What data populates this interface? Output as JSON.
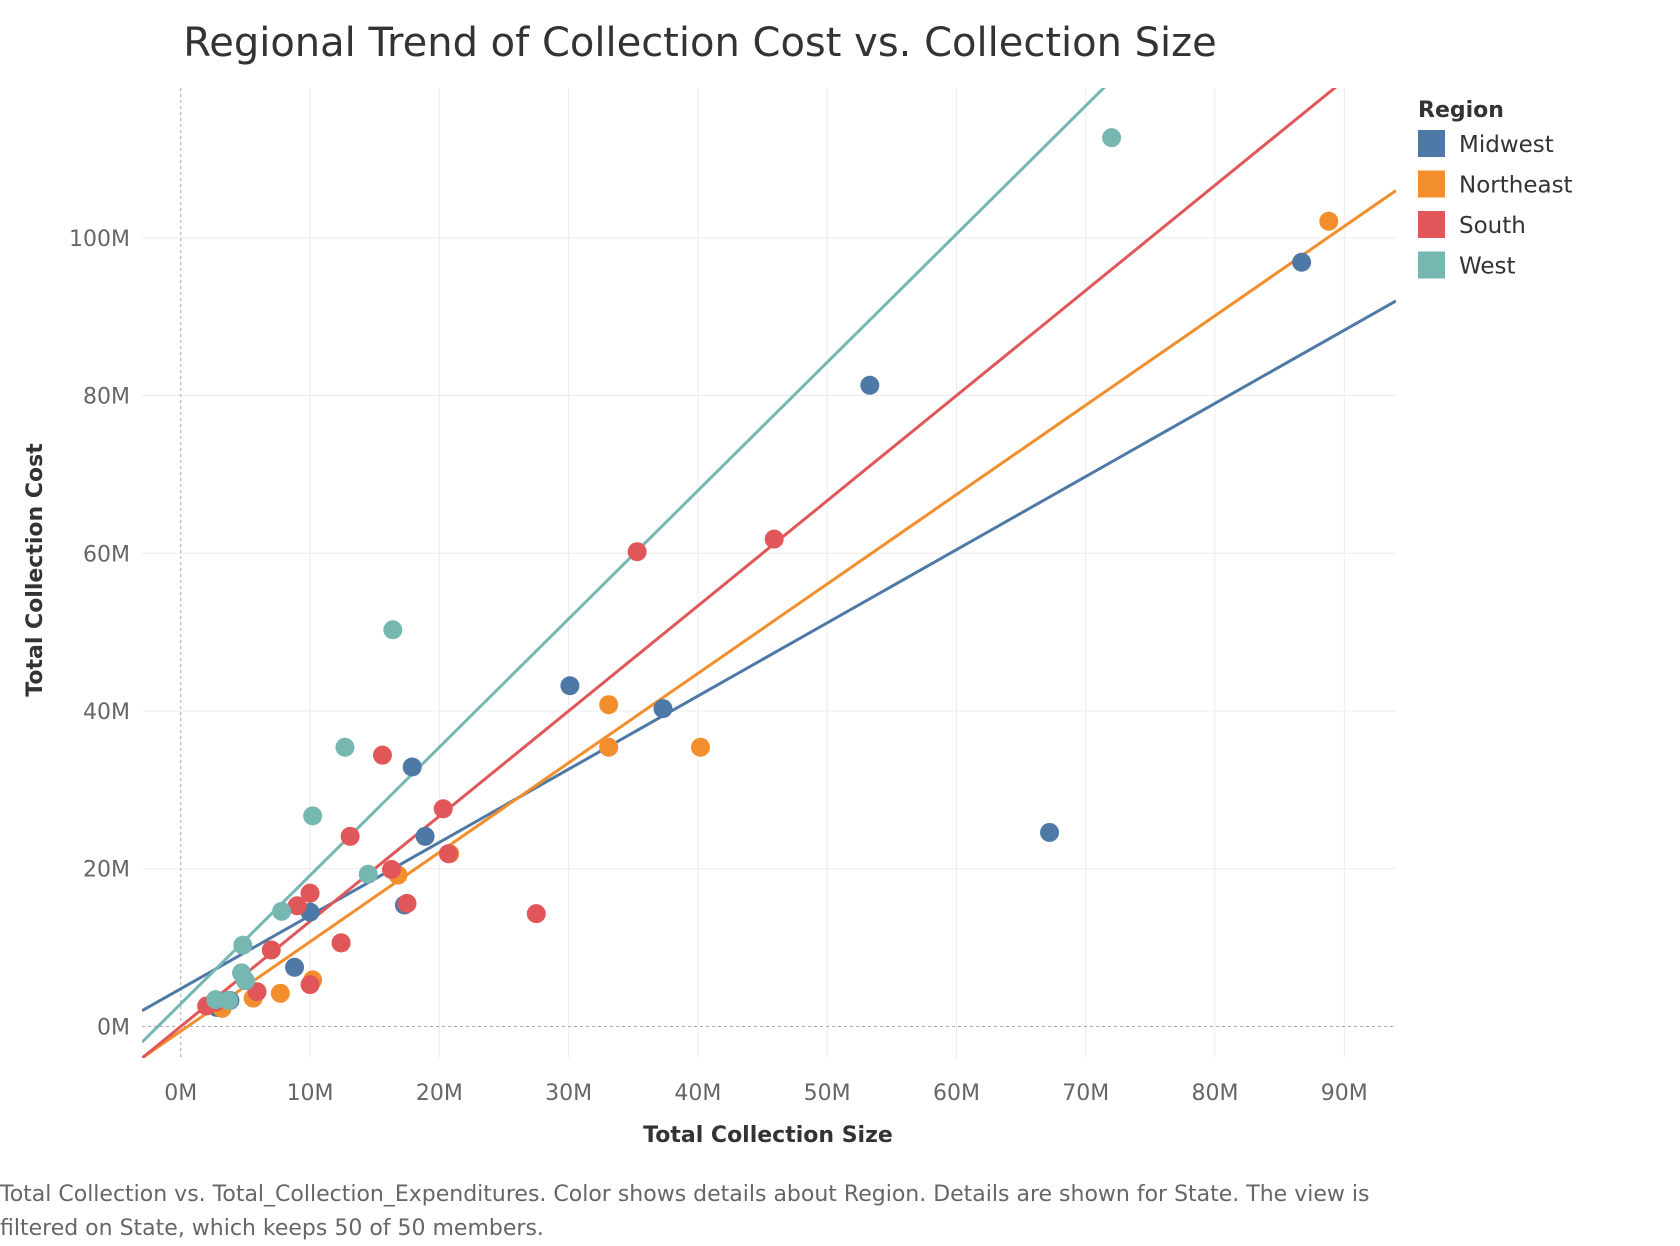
{
  "chart_data": {
    "type": "scatter",
    "title": "Regional Trend of Collection Cost vs. Collection Size",
    "xlabel": "Total Collection Size",
    "ylabel": "Total Collection Cost",
    "xlim": [
      -3000000,
      94000000
    ],
    "ylim": [
      -4000000,
      119000000
    ],
    "x_ticks": [
      0,
      10000000,
      20000000,
      30000000,
      40000000,
      50000000,
      60000000,
      70000000,
      80000000,
      90000000
    ],
    "x_tick_labels": [
      "0M",
      "10M",
      "20M",
      "30M",
      "40M",
      "50M",
      "60M",
      "70M",
      "80M",
      "90M"
    ],
    "y_ticks": [
      0,
      20000000,
      40000000,
      60000000,
      80000000,
      100000000
    ],
    "y_tick_labels": [
      "0M",
      "20M",
      "40M",
      "60M",
      "80M",
      "100M"
    ],
    "grid": true,
    "legend_title": "Region",
    "legend_position": "right",
    "series": [
      {
        "name": "Midwest",
        "color": "#4e79a7",
        "x": [
          2800000,
          3800000,
          8800000,
          10000000,
          17300000,
          17900000,
          18900000,
          30100000,
          37300000,
          53300000,
          67200000,
          86700000
        ],
        "y": [
          2400000,
          3300000,
          7500000,
          14500000,
          15400000,
          32900000,
          24100000,
          43200000,
          40300000,
          81300000,
          24600000,
          96900000
        ],
        "trend": {
          "x0": -3000000,
          "y0": 2000000,
          "x1": 94000000,
          "y1": 92000000
        }
      },
      {
        "name": "Northeast",
        "color": "#f28e2b",
        "x": [
          3200000,
          5600000,
          7700000,
          10200000,
          12400000,
          16800000,
          20800000,
          33100000,
          33100000,
          40200000,
          88800000
        ],
        "y": [
          2300000,
          3600000,
          4200000,
          5900000,
          10600000,
          19200000,
          21900000,
          40800000,
          35400000,
          35400000,
          102100000
        ],
        "trend": {
          "x0": -3000000,
          "y0": -4000000,
          "x1": 94000000,
          "y1": 106000000
        }
      },
      {
        "name": "South",
        "color": "#e15759",
        "x": [
          2000000,
          2700000,
          5900000,
          7000000,
          9000000,
          10000000,
          10000000,
          12400000,
          13100000,
          15600000,
          16300000,
          17500000,
          20300000,
          20700000,
          27500000,
          35300000,
          45900000
        ],
        "y": [
          2600000,
          3100000,
          4400000,
          9700000,
          15300000,
          16900000,
          5300000,
          10600000,
          24100000,
          34400000,
          19900000,
          15600000,
          27600000,
          21900000,
          14300000,
          60200000,
          61800000
        ],
        "trend": {
          "x0": -3000000,
          "y0": -4000000,
          "x1": 90000000,
          "y1": 120000000
        }
      },
      {
        "name": "West",
        "color": "#76b7b2",
        "x": [
          2700000,
          3700000,
          4700000,
          4800000,
          5000000,
          7800000,
          10200000,
          12700000,
          14500000,
          16400000,
          72000000
        ],
        "y": [
          3400000,
          3300000,
          6800000,
          10300000,
          5800000,
          14600000,
          26700000,
          35400000,
          19300000,
          50300000,
          112700000
        ],
        "trend": {
          "x0": -3000000,
          "y0": -2000000,
          "x1": 72000000,
          "y1": 120000000
        }
      }
    ]
  },
  "caption": "Total Collection vs. Total_Collection_Expenditures.  Color shows details about Region.  Details are shown for State. The view is filtered on State, which keeps 50 of 50 members."
}
